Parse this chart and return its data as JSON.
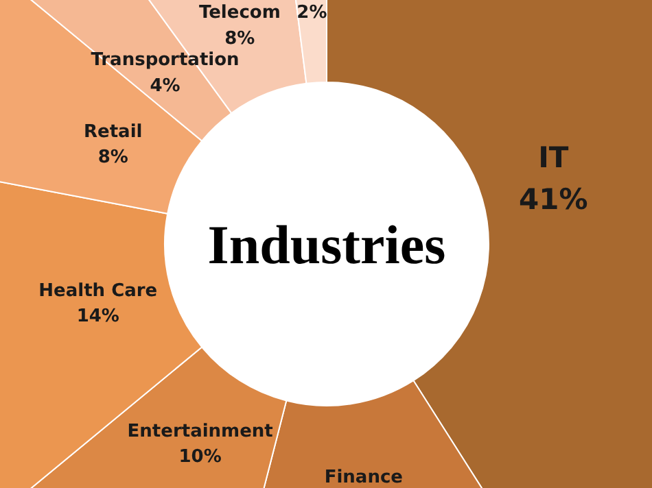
{
  "chart_data": {
    "type": "donut",
    "title": "Industries",
    "categories": [
      "IT",
      "Finance",
      "Entertainment",
      "Health Care",
      "Retail",
      "Transportation",
      "Telecom",
      null
    ],
    "values": [
      41,
      13,
      10,
      14,
      8,
      4,
      8,
      2
    ],
    "value_labels": [
      "41%",
      null,
      "10%",
      "14%",
      "8%",
      "4%",
      "8%",
      "2%"
    ],
    "colors": [
      "#a8692f",
      "#c8783a",
      "#dc8845",
      "#eb9650",
      "#f3a770",
      "#f5b893",
      "#f8c9b0",
      "#fbdccb"
    ]
  }
}
